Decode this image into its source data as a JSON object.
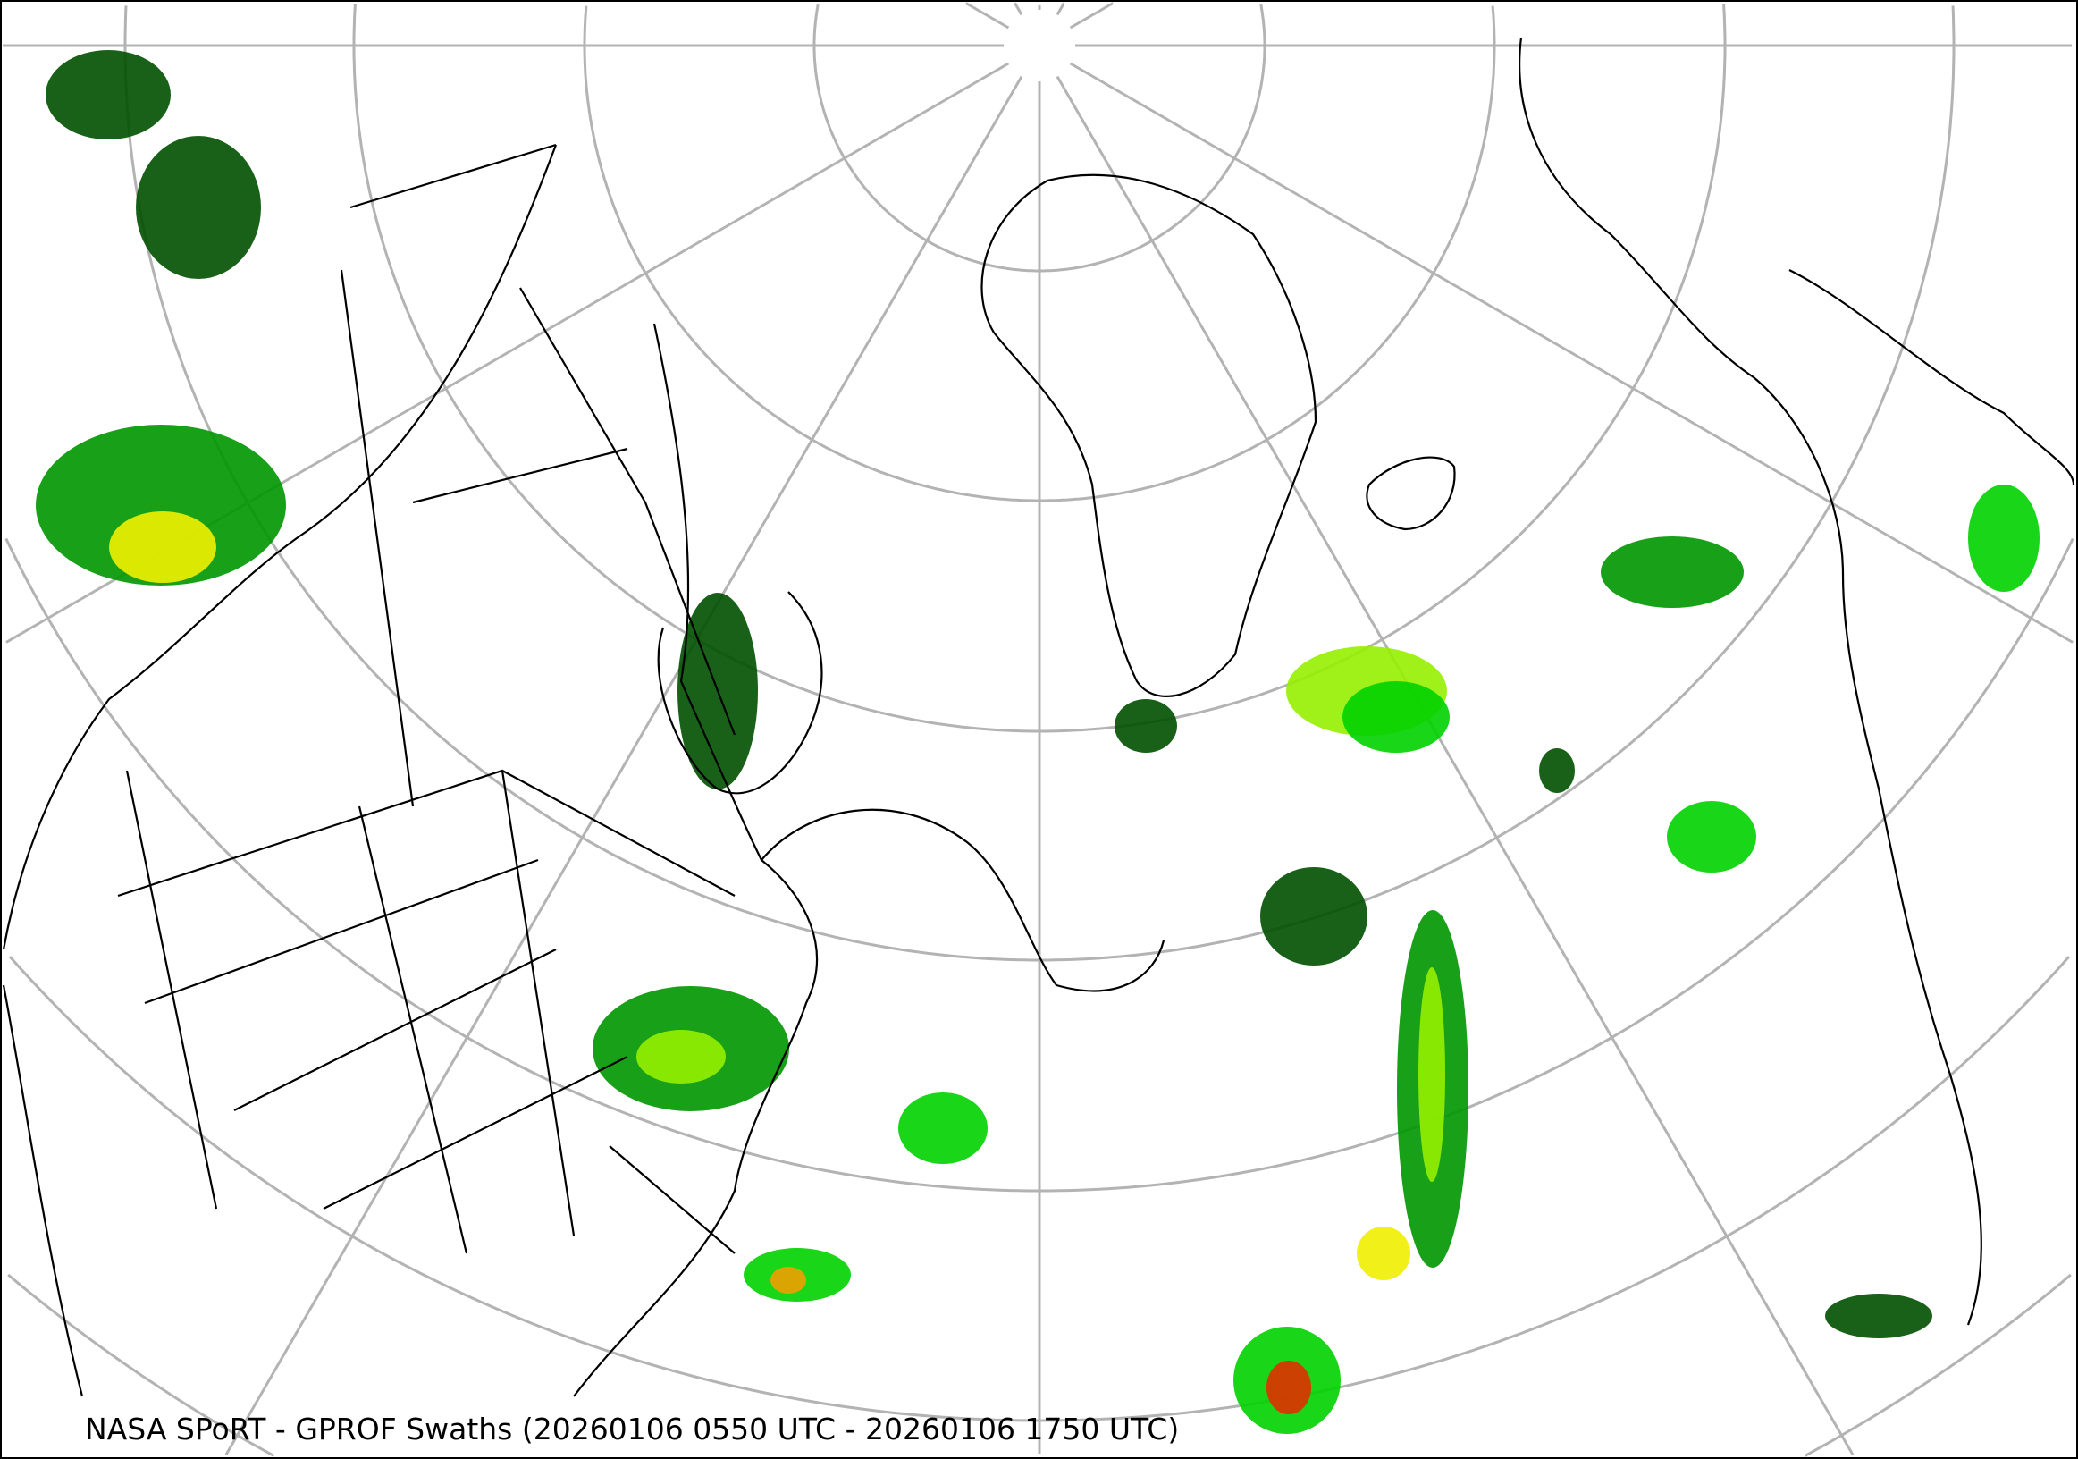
{
  "caption": "NASA SPoRT - GPROF Swaths (20260106 0550 UTC - 20260106 1750 UTC)",
  "map": {
    "projection": "north polar stereographic",
    "graticule_color": "#b3b3b3",
    "coastline_color": "#000000",
    "precip_colors": [
      "#005000",
      "#009600",
      "#00d200",
      "#96f000",
      "#f0f000",
      "#f0a000",
      "#e03000"
    ]
  }
}
